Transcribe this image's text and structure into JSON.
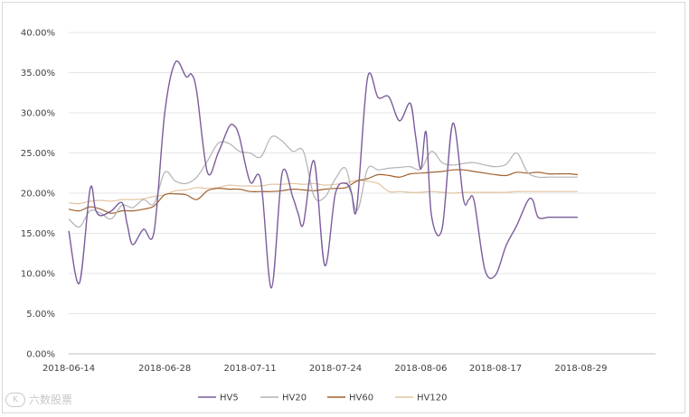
{
  "chart_data": {
    "type": "line",
    "title": "",
    "xlabel": "",
    "ylabel": "",
    "ylim": [
      0,
      40
    ],
    "y_tick_labels": [
      "0.00%",
      "5.00%",
      "10.00%",
      "15.00%",
      "20.00%",
      "25.00%",
      "30.00%",
      "35.00%",
      "40.00%"
    ],
    "x_tick_labels": [
      "2018-06-14",
      "2018-06-28",
      "2018-07-11",
      "2018-07-24",
      "2018-08-06",
      "2018-08-17",
      "2018-08-29"
    ],
    "x_range": [
      0,
      55
    ],
    "x_tick_positions": [
      0,
      9,
      17,
      25,
      33,
      40,
      48
    ],
    "grid": "horizontal",
    "legend_position": "bottom",
    "series": [
      {
        "name": "HV5",
        "color": "#7b5c9b",
        "x": [
          0,
          1,
          2,
          2.5,
          3,
          4,
          5,
          5.5,
          6,
          7,
          8,
          9,
          10,
          11,
          11.5,
          12,
          13,
          14,
          15,
          15.5,
          16,
          17,
          18,
          19,
          20,
          21,
          21.5,
          22,
          23,
          24,
          25,
          26,
          26.5,
          27,
          28,
          29,
          30,
          31,
          32,
          32.5,
          33,
          33.5,
          34,
          35,
          36,
          37,
          37.5,
          38,
          39,
          40,
          41,
          42,
          43,
          43.5,
          44,
          45,
          46,
          46.5,
          47,
          47.7
        ],
        "y": [
          15.3,
          8.8,
          20.5,
          18.0,
          17.2,
          17.8,
          18.8,
          16.0,
          13.6,
          15.5,
          15.2,
          30.0,
          36.3,
          34.5,
          34.8,
          32.6,
          22.6,
          25.0,
          28.2,
          28.4,
          27.0,
          21.4,
          21.6,
          8.2,
          22.5,
          19.5,
          17.5,
          16.2,
          24.0,
          11.0,
          20.0,
          21.2,
          20.0,
          18.2,
          34.3,
          31.9,
          32.0,
          29.0,
          31.2,
          27.2,
          23.0,
          27.6,
          17.2,
          15.6,
          28.7,
          19.2,
          19.2,
          19.0,
          10.5,
          9.8,
          13.5,
          16.0,
          19.0,
          19.1,
          17.0,
          17,
          17,
          17,
          17,
          17
        ]
      },
      {
        "name": "HV20",
        "color": "#b3b3b3",
        "x": [
          0,
          1,
          2,
          3,
          4,
          5,
          6,
          7,
          8,
          9,
          10,
          11,
          12,
          13,
          14,
          15,
          16,
          17,
          18,
          19,
          20,
          21,
          22,
          23,
          24,
          25,
          26,
          27,
          28,
          29,
          30,
          31,
          32,
          33,
          34,
          35,
          36,
          37,
          38,
          39,
          40,
          41,
          42,
          43,
          44,
          45,
          46,
          47,
          47.7
        ],
        "y": [
          16.8,
          15.8,
          17.8,
          17.5,
          16.8,
          18.5,
          18.2,
          19.2,
          18.7,
          22.6,
          21.5,
          21.2,
          22.0,
          24.0,
          26.2,
          26.2,
          25.2,
          25.0,
          24.5,
          27.0,
          26.5,
          25.2,
          25.2,
          19.6,
          19.5,
          21.8,
          23.0,
          17.8,
          23.0,
          22.9,
          23.1,
          23.2,
          23.3,
          23.0,
          25.2,
          23.8,
          23.5,
          23.7,
          23.8,
          23.5,
          23.3,
          23.6,
          25.0,
          22.6,
          22.0,
          22.0,
          22,
          22,
          22
        ]
      },
      {
        "name": "HV60",
        "color": "#a0612e",
        "x": [
          0,
          1,
          2,
          3,
          4,
          5,
          6,
          7,
          8,
          9,
          10,
          11,
          12,
          13,
          14,
          15,
          16,
          17,
          18,
          19,
          20,
          21,
          22,
          23,
          24,
          25,
          26,
          27,
          28,
          29,
          30,
          31,
          32,
          33,
          34,
          35,
          36,
          37,
          38,
          39,
          40,
          41,
          42,
          43,
          44,
          45,
          46,
          47,
          47.7
        ],
        "y": [
          18.0,
          17.8,
          18.3,
          18.0,
          17.5,
          17.8,
          17.8,
          18.0,
          18.4,
          19.8,
          19.9,
          19.8,
          19.2,
          20.3,
          20.6,
          20.5,
          20.5,
          20.2,
          20.2,
          20.2,
          20.3,
          20.5,
          20.4,
          20.3,
          20.5,
          20.6,
          20.7,
          21.5,
          21.8,
          22.3,
          22.2,
          22.0,
          22.4,
          22.5,
          22.6,
          22.7,
          22.9,
          22.9,
          22.7,
          22.5,
          22.3,
          22.2,
          22.6,
          22.5,
          22.6,
          22.4,
          22.4,
          22.4,
          22.3
        ]
      },
      {
        "name": "HV120",
        "color": "#e3c3a0",
        "x": [
          0,
          1,
          2,
          3,
          4,
          5,
          6,
          7,
          8,
          9,
          10,
          11,
          12,
          13,
          14,
          15,
          16,
          17,
          18,
          19,
          20,
          21,
          22,
          23,
          24,
          25,
          26,
          27,
          28,
          29,
          30,
          31,
          32,
          33,
          34,
          35,
          36,
          37,
          38,
          39,
          40,
          41,
          42,
          43,
          44,
          45,
          46,
          47,
          47.7
        ],
        "y": [
          18.8,
          18.7,
          19.0,
          19.1,
          19.0,
          19.2,
          19.2,
          19.3,
          19.6,
          19.8,
          20.3,
          20.4,
          20.7,
          20.6,
          20.7,
          21.0,
          20.9,
          20.9,
          20.9,
          21.1,
          21.1,
          21.2,
          21.1,
          21.2,
          21.0,
          21.1,
          21.3,
          21.6,
          21.5,
          21.2,
          20.2,
          20.2,
          20.1,
          20.1,
          20.2,
          20.1,
          20.0,
          20.1,
          20.1,
          20.1,
          20.1,
          20.1,
          20.2,
          20.2,
          20.2,
          20.2,
          20.2,
          20.2,
          20.2
        ]
      }
    ]
  },
  "watermark": {
    "text": "六数股票"
  }
}
